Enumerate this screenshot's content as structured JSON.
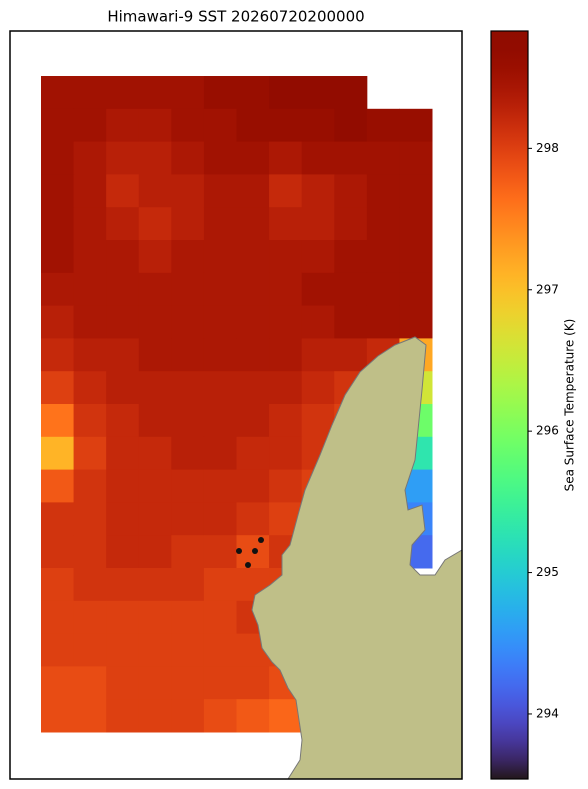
{
  "chart_data": {
    "type": "heatmap",
    "title": "Himawari-9 SST 20260720200000",
    "colorbar_label": "Sea Surface Temperature (K)",
    "colormap": "turbo",
    "clim": [
      293.54,
      298.83
    ],
    "cticks": [
      294,
      295,
      296,
      297,
      298
    ],
    "z": [
      [
        298.5,
        298.5,
        298.5,
        298.5,
        298.5,
        298.6,
        298.6,
        298.7,
        298.7,
        298.7,
        null,
        null
      ],
      [
        298.5,
        298.5,
        298.4,
        298.4,
        298.5,
        298.5,
        298.6,
        298.6,
        298.6,
        298.7,
        298.6,
        298.6
      ],
      [
        298.5,
        298.4,
        298.3,
        298.3,
        298.4,
        298.5,
        298.5,
        298.4,
        298.5,
        298.5,
        298.5,
        298.5
      ],
      [
        298.5,
        298.4,
        298.2,
        298.3,
        298.3,
        298.4,
        298.4,
        298.2,
        298.3,
        298.4,
        298.5,
        298.5
      ],
      [
        298.5,
        298.4,
        298.3,
        298.2,
        298.3,
        298.4,
        298.4,
        298.3,
        298.3,
        298.4,
        298.5,
        298.5
      ],
      [
        298.5,
        298.4,
        298.4,
        298.3,
        298.4,
        298.4,
        298.4,
        298.4,
        298.4,
        298.5,
        298.5,
        298.5
      ],
      [
        298.4,
        298.4,
        298.4,
        298.4,
        298.4,
        298.4,
        298.4,
        298.4,
        298.5,
        298.5,
        298.5,
        298.5
      ],
      [
        298.3,
        298.4,
        298.4,
        298.4,
        298.4,
        298.4,
        298.4,
        298.4,
        298.4,
        298.5,
        298.5,
        298.5
      ],
      [
        298.2,
        298.3,
        298.3,
        298.4,
        298.4,
        298.4,
        298.4,
        298.4,
        298.3,
        298.3,
        298.2,
        297.2
      ],
      [
        298.0,
        298.2,
        298.3,
        298.3,
        298.3,
        298.3,
        298.3,
        298.3,
        298.2,
        298.1,
        298.0,
        296.6
      ],
      [
        297.6,
        298.1,
        298.2,
        298.3,
        298.3,
        298.3,
        298.3,
        298.2,
        298.1,
        298.0,
        297.9,
        295.9
      ],
      [
        297.1,
        298.0,
        298.2,
        298.2,
        298.3,
        298.3,
        298.2,
        298.2,
        298.1,
        298.0,
        295.3,
        295.3
      ],
      [
        297.8,
        298.1,
        298.2,
        298.2,
        298.2,
        298.2,
        298.2,
        298.1,
        298.0,
        298.0,
        294.6,
        294.6
      ],
      [
        298.1,
        298.1,
        298.2,
        298.2,
        298.2,
        298.2,
        298.1,
        298.0,
        298.0,
        null,
        294.4,
        294.4
      ],
      [
        298.1,
        298.1,
        298.2,
        298.2,
        298.1,
        298.1,
        297.9,
        298.1,
        298.1,
        null,
        294.2,
        294.2
      ],
      [
        298.0,
        298.1,
        298.1,
        298.1,
        298.1,
        298.0,
        298.0,
        298.0,
        null,
        null,
        null,
        null
      ],
      [
        298.0,
        298.0,
        298.0,
        298.0,
        298.0,
        298.0,
        298.1,
        298.0,
        null,
        null,
        null,
        null
      ],
      [
        298.0,
        298.0,
        298.0,
        298.0,
        298.0,
        298.0,
        298.0,
        298.0,
        null,
        null,
        null,
        null
      ],
      [
        297.9,
        297.9,
        298.0,
        298.0,
        298.0,
        298.0,
        298.0,
        297.9,
        null,
        null,
        null,
        null
      ],
      [
        297.9,
        297.9,
        298.0,
        298.0,
        298.0,
        297.9,
        297.8,
        297.7,
        null,
        null,
        null,
        null
      ]
    ]
  }
}
